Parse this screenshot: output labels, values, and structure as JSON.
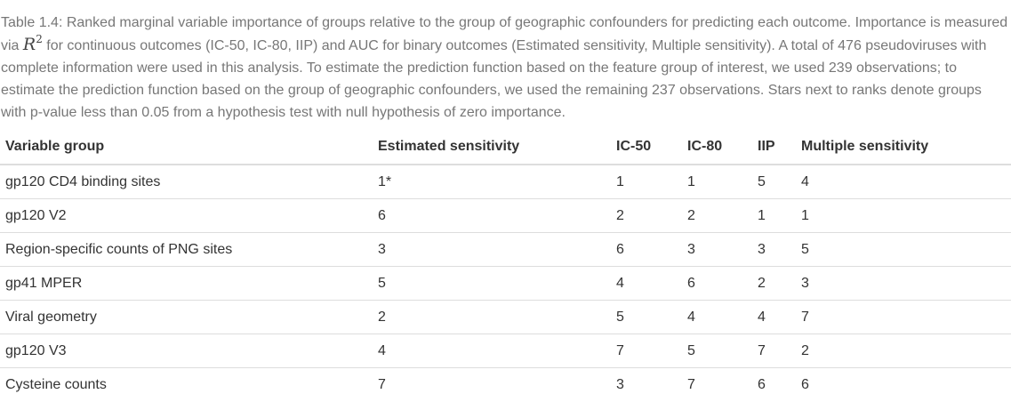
{
  "caption": {
    "before_math": "Table 1.4: Ranked marginal variable importance of groups relative to the group of geographic confounders for predicting each outcome. Importance is measured via ",
    "math_base": "R",
    "math_sup": "2",
    "after_math": " for continuous outcomes (IC-50, IC-80, IIP) and AUC for binary outcomes (Estimated sensitivity, Multiple sensitivity). A total of 476 pseudoviruses with complete information were used in this analysis. To estimate the prediction function based on the feature group of interest, we used 239 observations; to estimate the prediction function based on the group of geographic confounders, we used the remaining 237 observations. Stars next to ranks denote groups with p-value less than 0.05 from a hypothesis test with null hypothesis of zero importance."
  },
  "table": {
    "headers": [
      "Variable group",
      "Estimated sensitivity",
      "IC-50",
      "IC-80",
      "IIP",
      "Multiple sensitivity"
    ],
    "rows": [
      [
        "gp120 CD4 binding sites",
        "1*",
        "1",
        "1",
        "5",
        "4"
      ],
      [
        "gp120 V2",
        "6",
        "2",
        "2",
        "1",
        "1"
      ],
      [
        "Region-specific counts of PNG sites",
        "3",
        "6",
        "3",
        "3",
        "5"
      ],
      [
        "gp41 MPER",
        "5",
        "4",
        "6",
        "2",
        "3"
      ],
      [
        "Viral geometry",
        "2",
        "5",
        "4",
        "4",
        "7"
      ],
      [
        "gp120 V3",
        "4",
        "7",
        "5",
        "7",
        "2"
      ],
      [
        "Cysteine counts",
        "7",
        "3",
        "7",
        "6",
        "6"
      ]
    ]
  }
}
